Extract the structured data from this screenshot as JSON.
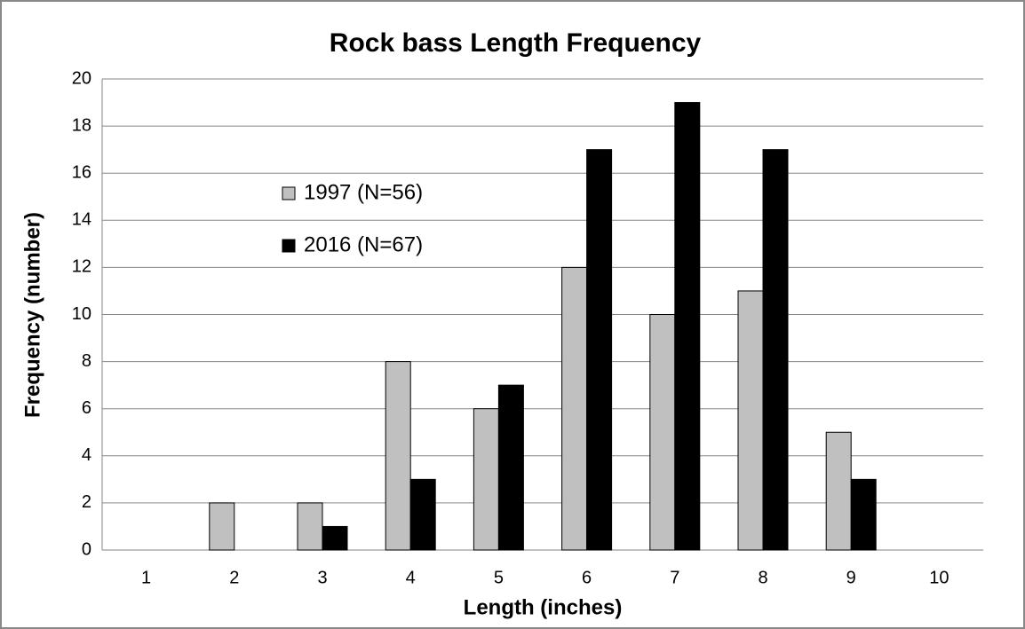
{
  "chart_data": {
    "type": "bar",
    "title": "Rock bass Length Frequency",
    "x_label": "Length (inches)",
    "y_label": "Frequency (number)",
    "categories": [
      "1",
      "2",
      "3",
      "4",
      "5",
      "6",
      "7",
      "8",
      "9",
      "10"
    ],
    "series": [
      {
        "name": "1997 (N=56)",
        "color": "#c0c0c0",
        "values": [
          0,
          2,
          2,
          8,
          6,
          12,
          10,
          11,
          5,
          0
        ]
      },
      {
        "name": "2016 (N=67)",
        "color": "#000000",
        "values": [
          0,
          0,
          1,
          3,
          7,
          17,
          19,
          17,
          3,
          0
        ]
      }
    ],
    "ylim": [
      0,
      20
    ],
    "yticks": [
      0,
      2,
      4,
      6,
      8,
      10,
      12,
      14,
      16,
      18,
      20
    ],
    "grid": true,
    "legend": "upper left"
  }
}
